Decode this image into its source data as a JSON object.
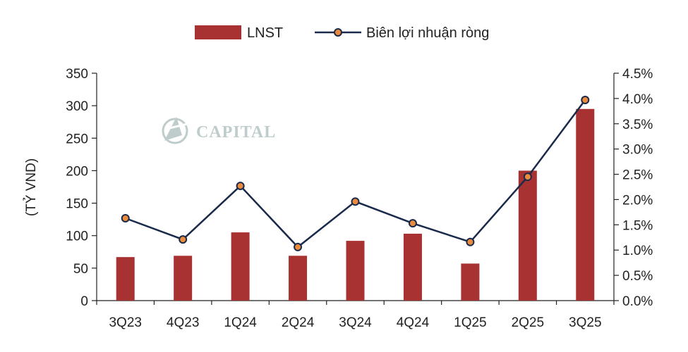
{
  "chart_data": {
    "type": "bar",
    "categories": [
      "3Q23",
      "4Q23",
      "1Q24",
      "2Q24",
      "3Q24",
      "4Q24",
      "1Q25",
      "2Q25",
      "3Q25"
    ],
    "series": [
      {
        "name": "LNST",
        "type": "bar",
        "axis": "left",
        "color": "#a83232",
        "values": [
          67,
          69,
          105,
          69,
          92,
          103,
          57,
          200,
          295
        ]
      },
      {
        "name": "Biên lợi nhuận ròng",
        "type": "line",
        "axis": "right",
        "color": "#1a2a4a",
        "marker_color": "#e98a3c",
        "values": [
          1.63,
          1.21,
          2.27,
          1.06,
          1.96,
          1.53,
          1.16,
          2.45,
          3.97
        ]
      }
    ],
    "ylabel": "(TỶ VND)",
    "ylim": [
      0,
      350
    ],
    "yticks": [
      "0",
      "50",
      "100",
      "150",
      "200",
      "250",
      "300",
      "350"
    ],
    "y2lim": [
      0,
      4.5
    ],
    "y2ticks": [
      "0.0%",
      "0.5%",
      "1.0%",
      "1.5%",
      "2.0%",
      "2.5%",
      "3.0%",
      "3.5%",
      "4.0%",
      "4.5%"
    ],
    "legend_position": "top-center",
    "grid": false
  },
  "watermark": {
    "text": "CAPITAL",
    "color": "#b9c7c7"
  }
}
